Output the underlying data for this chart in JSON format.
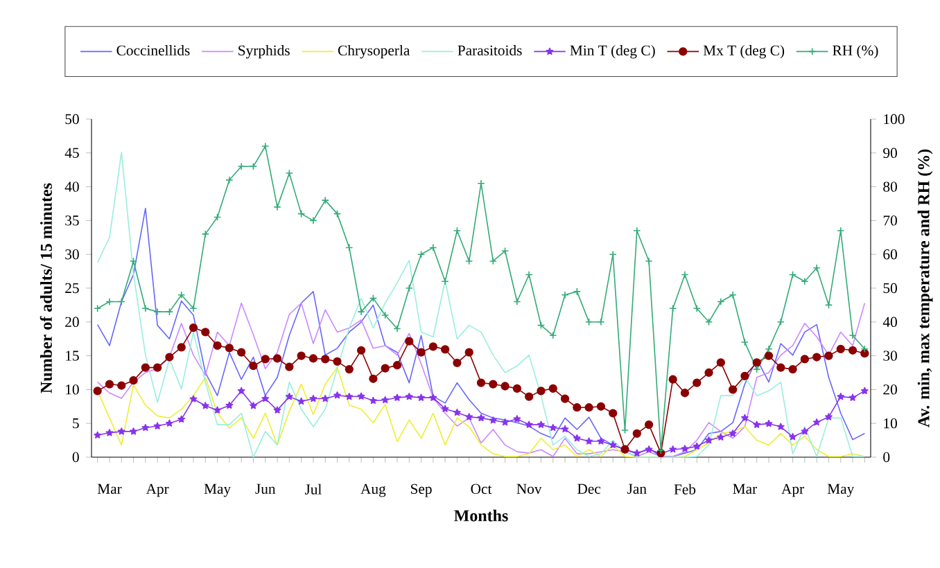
{
  "chart_data": {
    "type": "line",
    "xlabel": "Months",
    "ylabel": "Number of adults/ 15 minutes",
    "y2label": "Av. min, max temperature and RH (%)",
    "categories": [
      null,
      "Mar",
      null,
      null,
      null,
      "Apr",
      null,
      null,
      null,
      null,
      "May",
      null,
      null,
      null,
      "Jun",
      null,
      null,
      null,
      "Jul",
      null,
      null,
      null,
      null,
      "Aug",
      null,
      null,
      null,
      "Sep",
      null,
      null,
      null,
      null,
      "Oct",
      null,
      null,
      null,
      "Nov",
      null,
      null,
      null,
      null,
      "Dec",
      null,
      null,
      null,
      "Jan",
      null,
      null,
      null,
      "Feb",
      null,
      null,
      null,
      null,
      "Mar",
      null,
      null,
      null,
      "Apr",
      null,
      null,
      null,
      "May",
      null,
      null
    ],
    "ylim": [
      0,
      50
    ],
    "yticks": [
      0,
      5,
      10,
      15,
      20,
      25,
      30,
      35,
      40,
      45,
      50
    ],
    "y2lim": [
      0,
      100
    ],
    "y2ticks": [
      0,
      10,
      20,
      30,
      40,
      50,
      60,
      70,
      80,
      90,
      100
    ],
    "legend": "top",
    "series": [
      {
        "name": "Coccinellids",
        "color": "#6666ff",
        "marker": "none",
        "values": [
          19.6,
          16.5,
          23,
          27,
          36.8,
          19.5,
          17.5,
          23.1,
          21,
          12.5,
          9.1,
          15.5,
          11.5,
          14.8,
          9.1,
          11.8,
          18,
          22.8,
          24.5,
          15.1,
          16.1,
          18.5,
          20,
          22.5,
          16.5,
          15.5,
          11,
          18,
          9,
          8,
          11,
          8.5,
          6.5,
          5.8,
          5.5,
          5.1,
          4.6,
          3.5,
          2.8,
          5.8,
          4.1,
          5.9,
          2.8,
          1.8,
          1.1,
          0.5,
          1.3,
          0.1,
          0.1,
          0.6,
          1.1,
          3.5,
          3.8,
          5.1,
          10.8,
          14.5,
          11.1,
          16.8,
          15.1,
          18.5,
          19.6,
          11.8,
          6.5,
          2.6,
          3.5
        ]
      },
      {
        "name": "Syrphids",
        "color": "#cc88ff",
        "marker": "none",
        "values": [
          11.1,
          9.5,
          8.7,
          11.1,
          12.5,
          13.1,
          14.8,
          19.8,
          15.1,
          12.1,
          18.5,
          16.5,
          22.8,
          18.1,
          13.1,
          15.5,
          21.1,
          22.8,
          16.8,
          21.8,
          18.5,
          19.1,
          20.3,
          16.1,
          16.5,
          15.1,
          18.3,
          13.8,
          8.8,
          6.5,
          4.6,
          5.8,
          2.1,
          4.1,
          1.8,
          0.8,
          0.6,
          1.1,
          0.1,
          2.8,
          0.5,
          0.5,
          0.8,
          1.1,
          0.8,
          0.1,
          0.8,
          0.1,
          0.1,
          0.8,
          2.5,
          5.1,
          3.8,
          2.8,
          4.5,
          11.8,
          12.5,
          15.1,
          16.5,
          19.8,
          17.8,
          15.1,
          18.5,
          16.5,
          22.8
        ]
      },
      {
        "name": "Chrysoperla",
        "color": "#eeee33",
        "marker": "none",
        "values": [
          9.8,
          5.8,
          1.8,
          10.7,
          7.7,
          6.1,
          5.8,
          7.1,
          9.1,
          11.8,
          6.5,
          4.3,
          5.8,
          2.8,
          6.5,
          1.8,
          6.8,
          10.8,
          6.3,
          10.8,
          13.3,
          7.7,
          7.1,
          5.1,
          7.8,
          2.3,
          5.5,
          2.8,
          6.5,
          1.8,
          5.8,
          4.5,
          1.8,
          0.5,
          0.1,
          0.1,
          0.5,
          2.8,
          1.1,
          1.8,
          0.1,
          1.1,
          0.1,
          1.8,
          0.1,
          0,
          0,
          0,
          0,
          0.1,
          1.1,
          2.1,
          3.5,
          3.8,
          4.5,
          2.5,
          1.8,
          3.5,
          1.8,
          3.1,
          1.1,
          0.1,
          0.1,
          0.5,
          0.1
        ]
      },
      {
        "name": "Parasitoids",
        "color": "#99eedd",
        "marker": "none",
        "values": [
          28.8,
          32.5,
          45.1,
          27.1,
          15.1,
          8.1,
          14.5,
          10.1,
          18.5,
          11.1,
          4.8,
          4.8,
          6.5,
          0,
          3.8,
          1.8,
          11.1,
          7.1,
          4.5,
          7.1,
          13.1,
          19.1,
          23.5,
          19.1,
          22.8,
          25.8,
          29.1,
          18.5,
          17.8,
          26.1,
          17.5,
          19.5,
          18.5,
          15.1,
          12.5,
          13.5,
          15.1,
          9.1,
          1.8,
          3.1,
          1.1,
          0.1,
          0.5,
          2.5,
          0.8,
          0,
          0,
          0,
          0,
          0,
          0.1,
          1.8,
          9.1,
          9.1,
          11.8,
          9.1,
          9.8,
          11.1,
          0.5,
          4.5,
          0.1,
          5.8,
          5.8,
          0.1,
          0.1
        ]
      },
      {
        "name": "Min T (deg C)",
        "color": "#8833ee",
        "marker": "star",
        "axis": "y2",
        "values": [
          6.5,
          7.2,
          7.6,
          7.6,
          8.7,
          9.2,
          10,
          11.2,
          17.2,
          15.2,
          13.9,
          15.3,
          19.6,
          15.2,
          17.3,
          13.9,
          17.9,
          16.5,
          17.3,
          17.3,
          18.3,
          17.9,
          18,
          16.7,
          16.9,
          17.6,
          17.9,
          17.6,
          17.6,
          14.3,
          13.2,
          11.9,
          11.6,
          10.9,
          10.3,
          11.3,
          9.6,
          9.6,
          8.7,
          8.3,
          5.6,
          4.7,
          4.7,
          3.6,
          2.3,
          1.2,
          2.3,
          1,
          2.3,
          2.5,
          3.2,
          5,
          5.9,
          7,
          11.6,
          9.6,
          9.9,
          9,
          6,
          7.6,
          10.3,
          11.9,
          17.9,
          17.6,
          19.6
        ]
      },
      {
        "name": "Mx T (deg C)",
        "color": "#8b0000",
        "marker": "circle",
        "axis": "y2",
        "values": [
          19.6,
          21.6,
          21.2,
          22.7,
          26.5,
          26.5,
          29.6,
          32.5,
          38.3,
          37,
          33,
          32.3,
          31,
          27,
          29,
          29.2,
          26.7,
          30,
          29.2,
          29,
          28.3,
          26,
          31.6,
          23.2,
          26.3,
          27.2,
          34.3,
          31,
          32.7,
          31.9,
          27.9,
          31,
          22,
          21.6,
          21,
          20.3,
          17.9,
          19.6,
          20.3,
          17.3,
          14.7,
          14.7,
          15,
          13,
          2.3,
          7,
          9.6,
          1.2,
          23,
          19,
          22,
          25,
          28,
          20,
          24,
          28,
          30,
          26.5,
          26,
          29,
          29.6,
          30,
          32,
          31.6,
          30.7
        ]
      },
      {
        "name": "RH  (%)",
        "color": "#33aa77",
        "marker": "cross",
        "axis": "y2",
        "values": [
          44,
          46,
          46,
          58,
          44,
          43,
          43,
          48,
          44,
          66,
          71,
          82,
          86,
          86,
          92,
          74,
          84,
          72,
          70,
          76,
          72,
          62,
          43,
          47,
          42,
          38,
          50,
          60,
          62,
          52,
          67,
          58,
          81,
          58,
          61,
          46,
          54,
          39,
          36,
          48,
          49,
          40,
          40,
          60,
          8,
          67,
          58,
          2,
          44,
          54,
          44,
          40,
          46,
          48,
          34,
          26,
          32,
          40,
          54,
          52,
          56,
          45,
          67,
          36,
          32
        ]
      }
    ]
  }
}
